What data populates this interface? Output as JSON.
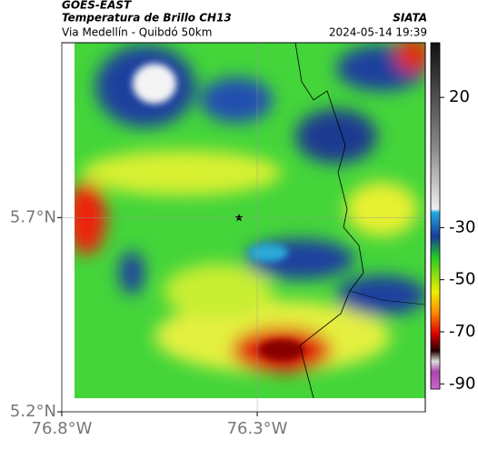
{
  "header": {
    "title": "GOES-EAST",
    "subtitle": "Temperatura de Brillo CH13",
    "route": "Via Medellín - Quibdó 50km",
    "source": "SIATA",
    "datetime": "2024-05-14 19:39"
  },
  "map": {
    "xlim": [
      -76.8,
      -75.87
    ],
    "ylim": [
      5.2,
      6.15
    ],
    "xticks": [
      {
        "value": -76.8,
        "label": "76.8°W"
      },
      {
        "value": -76.3,
        "label": "76.3°W"
      }
    ],
    "yticks": [
      {
        "value": 5.2,
        "label": "5.2°N"
      },
      {
        "value": 5.7,
        "label": "5.7°N"
      }
    ],
    "grid": true
  },
  "colorbar": {
    "lim": [
      41,
      -92
    ],
    "ticks": [
      20,
      -30,
      -50,
      -70,
      -90
    ]
  }
}
